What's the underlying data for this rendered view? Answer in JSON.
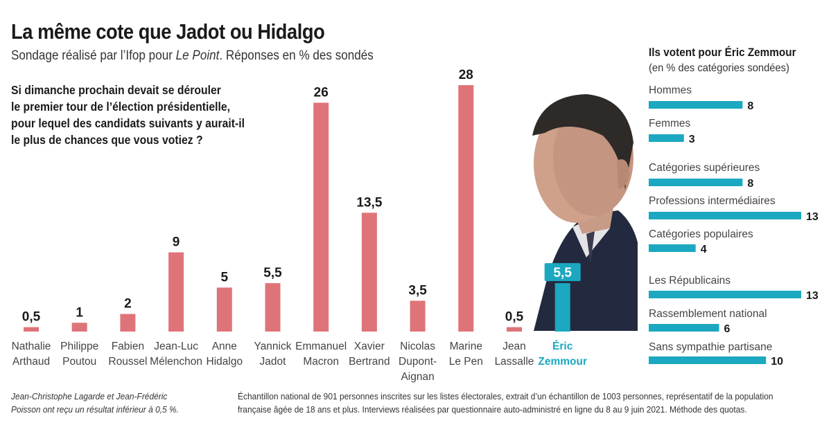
{
  "header": {
    "title": "La même cote que Jadot ou Hidalgo",
    "subtitle_pre": "Sondage réalisé par l’Ifop pour ",
    "subtitle_em": "Le Point",
    "subtitle_post": ". Réponses en % des sondés"
  },
  "question": {
    "lines": [
      "Si dimanche prochain devait se dérouler",
      "le premier tour de l’élection présidentielle,",
      "pour lequel des candidats suivants y aurait-il",
      "le plus de chances que vous votiez ?"
    ]
  },
  "colors": {
    "bar": "#de7479",
    "highlight": "#1ba8c0",
    "text": "#1a1a1a",
    "muted": "#444444"
  },
  "chart_data": [
    {
      "type": "bar",
      "title": "",
      "xlabel": "",
      "ylabel": "",
      "ylim": [
        0,
        28
      ],
      "categories": [
        [
          "Nathalie",
          "Arthaud"
        ],
        [
          "Philippe",
          "Poutou"
        ],
        [
          "Fabien",
          "Roussel"
        ],
        [
          "Jean-Luc",
          "Mélenchon"
        ],
        [
          "Anne",
          "Hidalgo"
        ],
        [
          "Yannick",
          "Jadot"
        ],
        [
          "Emmanuel",
          "Macron"
        ],
        [
          "Xavier",
          "Bertrand"
        ],
        [
          "Nicolas",
          "Dupont-",
          "Aignan"
        ],
        [
          "Marine",
          "Le Pen"
        ],
        [
          "Jean",
          "Lassalle"
        ],
        [
          "Éric",
          "Zemmour"
        ]
      ],
      "values": [
        0.5,
        1,
        2,
        9,
        5,
        5.5,
        26,
        13.5,
        3.5,
        28,
        0.5,
        5.5
      ],
      "value_labels": [
        "0,5",
        "1",
        "2",
        "9",
        "5",
        "5,5",
        "26",
        "13,5",
        "3,5",
        "28",
        "0,5",
        "5,5"
      ],
      "highlight_index": 11,
      "grid": false,
      "legend": "none"
    },
    {
      "type": "bar",
      "orientation": "horizontal",
      "title": "Ils votent pour Éric Zemmour",
      "subtitle": "(en % des catégories sondées)",
      "xlim": [
        0,
        13
      ],
      "categories": [
        "Hommes",
        "Femmes",
        "Catégories supérieures",
        "Professions intermédiaires",
        "Catégories populaires",
        "Les Républicains",
        "Rassemblement national",
        "Sans sympathie partisane"
      ],
      "values": [
        8,
        3,
        8,
        13,
        4,
        13,
        6,
        10
      ],
      "value_labels": [
        "8",
        "3",
        "8",
        "13",
        "4",
        "13",
        "6",
        "10"
      ],
      "grid": false,
      "legend": "none"
    }
  ],
  "footnotes": {
    "left": [
      "Jean-Christophe Lagarde et Jean-Frédéric",
      "Poisson ont reçu un résultat inférieur à 0,5 %."
    ],
    "right": [
      "Échantillon national de 901 personnes inscrites sur les listes électorales, extrait d’un échantillon de 1003 personnes, représentatif de la population",
      "française âgée de 18 ans et plus. Interviews réalisées par questionnaire auto-administré en ligne du 8 au 9 juin 2021. Méthode des quotas."
    ]
  }
}
